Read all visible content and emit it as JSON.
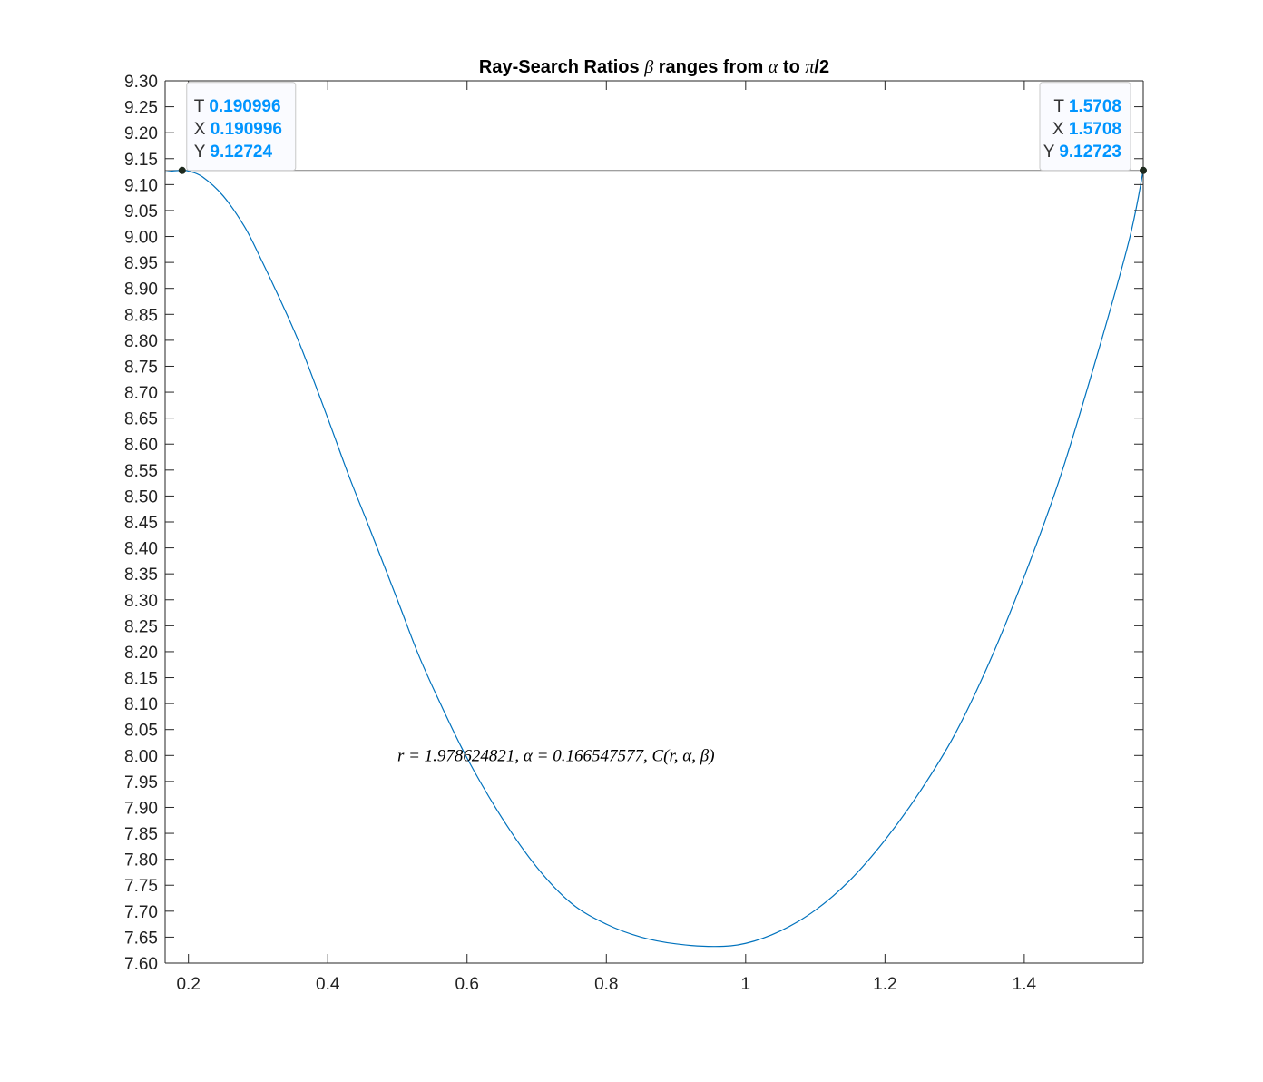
{
  "chart_data": {
    "type": "line",
    "title_parts": {
      "prefix": "Ray-Search Ratios ",
      "beta": "β",
      "middle": " ranges from ",
      "alpha": "α",
      "to": " to ",
      "pi": "π",
      "suffix": "/2"
    },
    "xlim": [
      0.166547577,
      1.5708
    ],
    "ylim": [
      7.6,
      9.3
    ],
    "x_ticks": [
      "0.2",
      "0.4",
      "0.6",
      "0.8",
      "1",
      "1.2",
      "1.4"
    ],
    "x_tick_values": [
      0.2,
      0.4,
      0.6,
      0.8,
      1.0,
      1.2,
      1.4
    ],
    "y_ticks": [
      "7.60",
      "7.65",
      "7.70",
      "7.75",
      "7.80",
      "7.85",
      "7.90",
      "7.95",
      "8.00",
      "8.05",
      "8.10",
      "8.15",
      "8.20",
      "8.25",
      "8.30",
      "8.35",
      "8.40",
      "8.45",
      "8.50",
      "8.55",
      "8.60",
      "8.65",
      "8.70",
      "8.75",
      "8.80",
      "8.85",
      "8.90",
      "8.95",
      "9.00",
      "9.05",
      "9.10",
      "9.15",
      "9.20",
      "9.25",
      "9.30"
    ],
    "y_tick_values": [
      7.6,
      7.65,
      7.7,
      7.75,
      7.8,
      7.85,
      7.9,
      7.95,
      8.0,
      8.05,
      8.1,
      8.15,
      8.2,
      8.25,
      8.3,
      8.35,
      8.4,
      8.45,
      8.5,
      8.55,
      8.6,
      8.65,
      8.7,
      8.75,
      8.8,
      8.85,
      8.9,
      8.95,
      9.0,
      9.05,
      9.1,
      9.15,
      9.2,
      9.25,
      9.3
    ],
    "grid": false,
    "series": [
      {
        "color": "#0072BD",
        "x": [
          0.1665,
          0.18,
          0.191,
          0.2,
          0.22,
          0.25,
          0.28,
          0.3,
          0.33,
          0.36,
          0.4,
          0.43,
          0.46,
          0.5,
          0.53,
          0.56,
          0.6,
          0.65,
          0.7,
          0.75,
          0.8,
          0.85,
          0.9,
          0.956,
          1.0,
          1.05,
          1.1,
          1.15,
          1.2,
          1.25,
          1.3,
          1.35,
          1.4,
          1.45,
          1.5,
          1.55,
          1.5708
        ],
        "y": [
          9.124,
          9.1265,
          9.1272,
          9.126,
          9.115,
          9.078,
          9.02,
          8.968,
          8.883,
          8.792,
          8.65,
          8.54,
          8.438,
          8.3,
          8.195,
          8.105,
          7.995,
          7.88,
          7.785,
          7.715,
          7.675,
          7.65,
          7.637,
          7.632,
          7.638,
          7.662,
          7.702,
          7.76,
          7.837,
          7.93,
          8.04,
          8.18,
          8.345,
          8.53,
          8.75,
          8.99,
          9.1272
        ]
      }
    ],
    "reference_line": {
      "y": 9.12724,
      "color": "#808080"
    },
    "annotation": {
      "text": "r = 1.978624821, α = 0.166547577, C(r, α, β)",
      "x": 0.5,
      "y": 8.0
    },
    "datatips": [
      {
        "x": 0.190996,
        "y": 9.12724,
        "placement": "right",
        "rows": [
          {
            "key": "T",
            "value": "0.190996"
          },
          {
            "key": "X",
            "value": "0.190996"
          },
          {
            "key": "Y",
            "value": "9.12724"
          }
        ]
      },
      {
        "x": 1.5708,
        "y": 9.12723,
        "placement": "left",
        "rows": [
          {
            "key": "T",
            "value": "1.5708"
          },
          {
            "key": "X",
            "value": "1.5708"
          },
          {
            "key": "Y",
            "value": "9.12723"
          }
        ]
      }
    ],
    "colors": {
      "line": "#0072BD",
      "datatip_value": "#0095FF",
      "datatip_border": "#C8C8C8",
      "datatip_bg": "#FAFBFF",
      "marker": "#1E2A1E",
      "axis": "#262626",
      "reference_line": "#808080"
    }
  }
}
